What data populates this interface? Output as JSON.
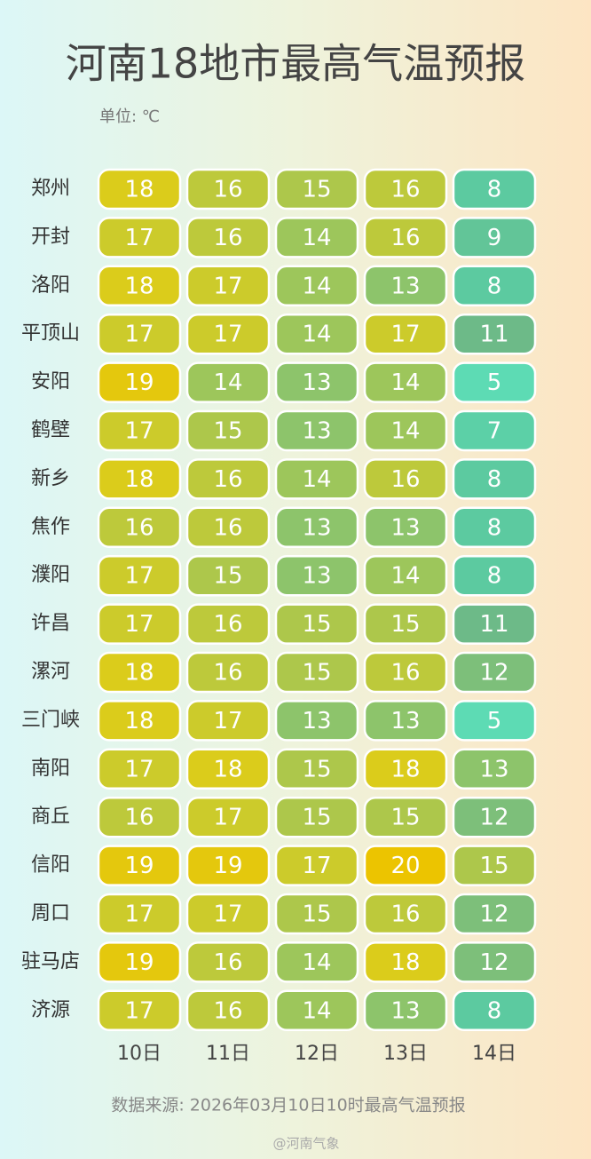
{
  "chart_data": {
    "type": "heatmap",
    "title": "河南18地市最高气温预报",
    "unit": "单位: ℃",
    "rows": [
      "郑州",
      "开封",
      "洛阳",
      "平顶山",
      "安阳",
      "鹤壁",
      "新乡",
      "焦作",
      "濮阳",
      "许昌",
      "漯河",
      "三门峡",
      "南阳",
      "商丘",
      "信阳",
      "周口",
      "驻马店",
      "济源"
    ],
    "columns": [
      "10日",
      "11日",
      "12日",
      "13日",
      "14日"
    ],
    "values": [
      [
        18,
        16,
        15,
        16,
        8
      ],
      [
        17,
        16,
        14,
        16,
        9
      ],
      [
        18,
        17,
        14,
        13,
        8
      ],
      [
        17,
        17,
        14,
        17,
        11
      ],
      [
        19,
        14,
        13,
        14,
        5
      ],
      [
        17,
        15,
        13,
        14,
        7
      ],
      [
        18,
        16,
        14,
        16,
        8
      ],
      [
        16,
        16,
        13,
        13,
        8
      ],
      [
        17,
        15,
        13,
        14,
        8
      ],
      [
        17,
        16,
        15,
        15,
        11
      ],
      [
        18,
        16,
        15,
        16,
        12
      ],
      [
        18,
        17,
        13,
        13,
        5
      ],
      [
        17,
        18,
        15,
        18,
        13
      ],
      [
        16,
        17,
        15,
        15,
        12
      ],
      [
        19,
        19,
        17,
        20,
        15
      ],
      [
        17,
        17,
        15,
        16,
        12
      ],
      [
        19,
        16,
        14,
        18,
        12
      ],
      [
        17,
        16,
        14,
        13,
        8
      ]
    ],
    "source": "数据来源: 2026年03月10日10时最高气温预报",
    "watermark": "@河南气象"
  }
}
